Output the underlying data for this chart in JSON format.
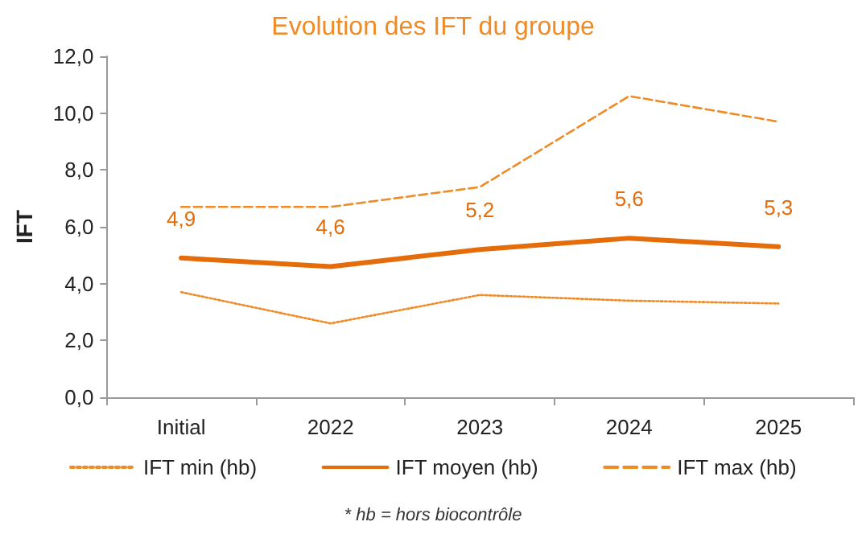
{
  "chart_data": {
    "type": "line",
    "title": "Evolution des IFT du groupe",
    "ylabel": "IFT",
    "categories": [
      "Initial",
      "2022",
      "2023",
      "2024",
      "2025"
    ],
    "series": [
      {
        "name": "IFT min (hb)",
        "color": "#f08a24",
        "line_style": "dotted",
        "values": [
          3.7,
          2.6,
          3.6,
          3.4,
          3.3
        ]
      },
      {
        "name": "IFT moyen (hb)",
        "color": "#e46c0a",
        "line_style": "solid",
        "values": [
          4.9,
          4.6,
          5.2,
          5.6,
          5.3
        ],
        "value_labels": [
          "4,9",
          "4,6",
          "5,2",
          "5,6",
          "5,3"
        ]
      },
      {
        "name": "IFT max (hb)",
        "color": "#f08a24",
        "line_style": "dashed",
        "values": [
          6.7,
          6.7,
          7.4,
          10.6,
          9.7
        ]
      }
    ],
    "ylim": [
      0,
      12
    ],
    "yticks": [
      {
        "value": 0,
        "label": "0,0"
      },
      {
        "value": 2,
        "label": "2,0"
      },
      {
        "value": 4,
        "label": "4,0"
      },
      {
        "value": 6,
        "label": "6,0"
      },
      {
        "value": 8,
        "label": "8,0"
      },
      {
        "value": 10,
        "label": "10,0"
      },
      {
        "value": 12,
        "label": "12,0"
      }
    ],
    "grid": false,
    "legend": "bottom",
    "marker": "none",
    "annotations": [
      "* hb = hors biocontrôle"
    ]
  }
}
